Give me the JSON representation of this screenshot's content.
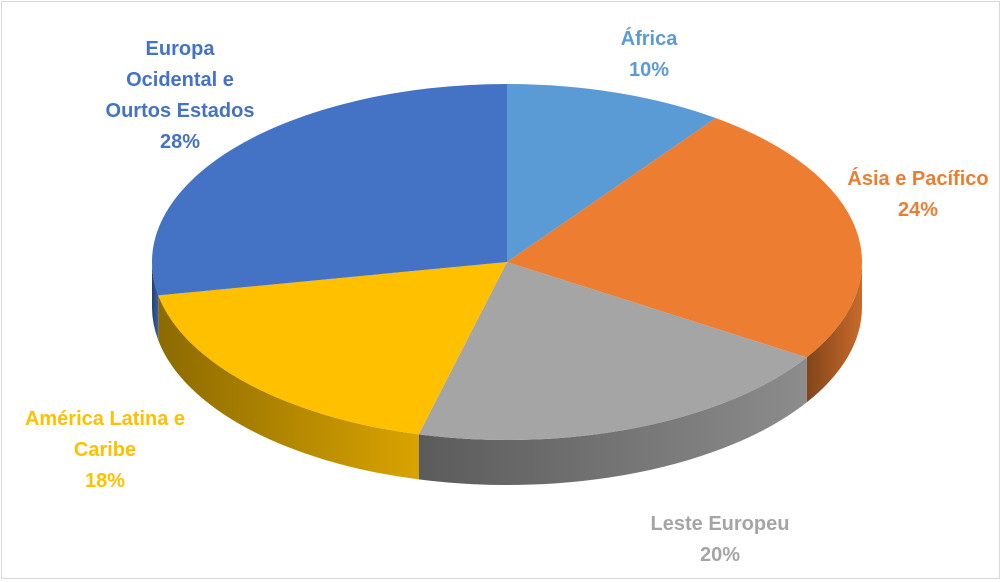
{
  "chart_data": {
    "type": "pie3d",
    "categories": [
      "África",
      "Ásia e Pacífico",
      "Leste Europeu",
      "América Latina e Caribe",
      "Europa Ocidental e Ourtos Estados"
    ],
    "values": [
      10,
      24,
      20,
      18,
      28
    ],
    "value_labels": [
      "10%",
      "24%",
      "20%",
      "18%",
      "28%"
    ],
    "colors": [
      "#5b9bd5",
      "#ed7d31",
      "#a5a5a5",
      "#ffc000",
      "#4472c4"
    ]
  }
}
